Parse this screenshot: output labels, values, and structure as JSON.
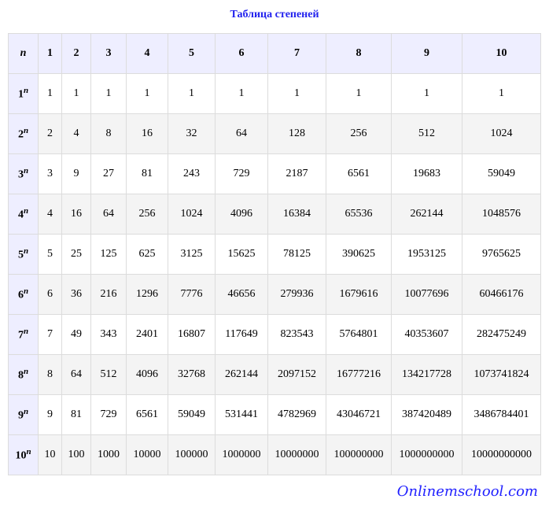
{
  "title": "Таблица степеней",
  "header": {
    "corner": "n",
    "cols": [
      "1",
      "2",
      "3",
      "4",
      "5",
      "6",
      "7",
      "8",
      "9",
      "10"
    ]
  },
  "rows": [
    {
      "base": "1",
      "exp": "n",
      "values": [
        "1",
        "1",
        "1",
        "1",
        "1",
        "1",
        "1",
        "1",
        "1",
        "1"
      ]
    },
    {
      "base": "2",
      "exp": "n",
      "values": [
        "2",
        "4",
        "8",
        "16",
        "32",
        "64",
        "128",
        "256",
        "512",
        "1024"
      ]
    },
    {
      "base": "3",
      "exp": "n",
      "values": [
        "3",
        "9",
        "27",
        "81",
        "243",
        "729",
        "2187",
        "6561",
        "19683",
        "59049"
      ]
    },
    {
      "base": "4",
      "exp": "n",
      "values": [
        "4",
        "16",
        "64",
        "256",
        "1024",
        "4096",
        "16384",
        "65536",
        "262144",
        "1048576"
      ]
    },
    {
      "base": "5",
      "exp": "n",
      "values": [
        "5",
        "25",
        "125",
        "625",
        "3125",
        "15625",
        "78125",
        "390625",
        "1953125",
        "9765625"
      ]
    },
    {
      "base": "6",
      "exp": "n",
      "values": [
        "6",
        "36",
        "216",
        "1296",
        "7776",
        "46656",
        "279936",
        "1679616",
        "10077696",
        "60466176"
      ]
    },
    {
      "base": "7",
      "exp": "n",
      "values": [
        "7",
        "49",
        "343",
        "2401",
        "16807",
        "117649",
        "823543",
        "5764801",
        "40353607",
        "282475249"
      ]
    },
    {
      "base": "8",
      "exp": "n",
      "values": [
        "8",
        "64",
        "512",
        "4096",
        "32768",
        "262144",
        "2097152",
        "16777216",
        "134217728",
        "1073741824"
      ]
    },
    {
      "base": "9",
      "exp": "n",
      "values": [
        "9",
        "81",
        "729",
        "6561",
        "59049",
        "531441",
        "4782969",
        "43046721",
        "387420489",
        "3486784401"
      ]
    },
    {
      "base": "10",
      "exp": "n",
      "values": [
        "10",
        "100",
        "1000",
        "10000",
        "100000",
        "1000000",
        "10000000",
        "100000000",
        "1000000000",
        "10000000000"
      ]
    }
  ],
  "logo": "Onlinemschool.com"
}
